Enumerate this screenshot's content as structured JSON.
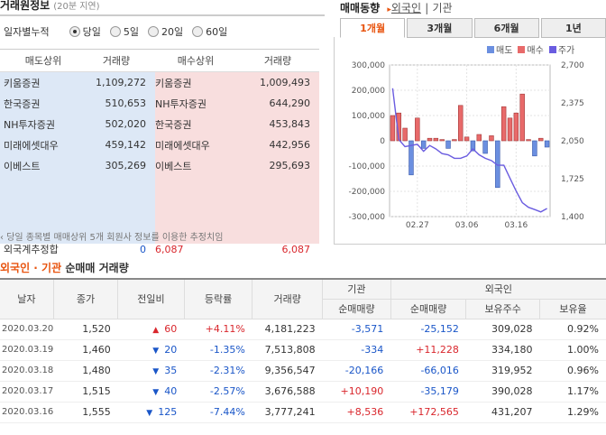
{
  "left": {
    "title": "거래원정보",
    "subtitle": "(20분 지연)",
    "accum_label": "일자별누적",
    "periods": [
      {
        "label": "당일",
        "selected": true
      },
      {
        "label": "5일",
        "selected": false
      },
      {
        "label": "20일",
        "selected": false
      },
      {
        "label": "60일",
        "selected": false
      }
    ],
    "headers": [
      "매도상위",
      "거래량",
      "매수상위",
      "거래량"
    ],
    "rows": [
      {
        "sell_name": "키움증권",
        "sell_vol": "1,109,272",
        "buy_name": "키움증권",
        "buy_vol": "1,009,493"
      },
      {
        "sell_name": "한국증권",
        "sell_vol": "510,653",
        "buy_name": "NH투자증권",
        "buy_vol": "644,290"
      },
      {
        "sell_name": "NH투자증권",
        "sell_vol": "502,020",
        "buy_name": "한국증권",
        "buy_vol": "453,843"
      },
      {
        "sell_name": "미래에셋대우",
        "sell_vol": "459,142",
        "buy_name": "미래에셋대우",
        "buy_vol": "442,956"
      },
      {
        "sell_name": "이베스트",
        "sell_vol": "305,269",
        "buy_name": "이베스트",
        "buy_vol": "295,693"
      }
    ],
    "foreign": {
      "label": "외국계추정합",
      "sell": "0",
      "buy_name": "6,087",
      "buy": "6,087"
    },
    "note": "당일 종목별 매매상위 5개 회원사 정보를 이용한 추정치임"
  },
  "chart": {
    "title": "매매동향",
    "link1": "외국인",
    "link2": "기관",
    "tabs": [
      {
        "label": "1개월",
        "active": true
      },
      {
        "label": "3개월",
        "active": false
      },
      {
        "label": "6개월",
        "active": false
      },
      {
        "label": "1년",
        "active": false
      }
    ],
    "legend": [
      {
        "label": "매도",
        "color": "#6b8fe0"
      },
      {
        "label": "매수",
        "color": "#e86a6a"
      },
      {
        "label": "주가",
        "color": "#6a5ce0"
      }
    ]
  },
  "chart_data": {
    "type": "bar",
    "y_left_ticks": [
      "300,000",
      "200,000",
      "100,000",
      "0",
      "-100,000",
      "-200,000",
      "-300,000"
    ],
    "y_right_ticks": [
      "2,700",
      "2,375",
      "2,050",
      "1,725",
      "1,400"
    ],
    "x_ticks": [
      "02.27",
      "03.06",
      "03.16"
    ],
    "ylim": [
      -300000,
      300000
    ],
    "y2lim": [
      1400,
      2700
    ],
    "bars": [
      100000,
      110000,
      50000,
      -135000,
      90000,
      -30000,
      10000,
      10000,
      5000,
      -30000,
      5000,
      140000,
      15000,
      -40000,
      25000,
      -50000,
      20000,
      -185000,
      135000,
      90000,
      110000,
      185000,
      5000,
      -60000,
      10000,
      -25000
    ],
    "price": [
      2500,
      2060,
      2000,
      2010,
      2020,
      1960,
      2010,
      1980,
      1940,
      1930,
      1900,
      1900,
      1920,
      1980,
      1930,
      1900,
      1880,
      1840,
      1840,
      1730,
      1620,
      1520,
      1480,
      1460,
      1440,
      1470
    ]
  },
  "bottom": {
    "title_a": "외국인",
    "title_sep": " · ",
    "title_b": "기관",
    "title_c": " 순매매 거래량",
    "group_inst": "기관",
    "group_foreign": "외국인",
    "headers": [
      "날자",
      "종가",
      "전일비",
      "등락률",
      "거래량",
      "순매매량",
      "순매매량",
      "보유주수",
      "보유율"
    ],
    "rows": [
      {
        "date": "2020.03.20",
        "close": "1,520",
        "dir": "up",
        "diff": "60",
        "rate": "+4.11%",
        "vol": "4,181,223",
        "inst": "-3,571",
        "frgn": "-25,152",
        "hold": "309,028",
        "ratio": "0.92%"
      },
      {
        "date": "2020.03.19",
        "close": "1,460",
        "dir": "down",
        "diff": "20",
        "rate": "-1.35%",
        "vol": "7,513,808",
        "inst": "-334",
        "frgn": "+11,228",
        "hold": "334,180",
        "ratio": "1.00%"
      },
      {
        "date": "2020.03.18",
        "close": "1,480",
        "dir": "down",
        "diff": "35",
        "rate": "-2.31%",
        "vol": "9,356,547",
        "inst": "-20,166",
        "frgn": "-66,016",
        "hold": "319,952",
        "ratio": "0.96%"
      },
      {
        "date": "2020.03.17",
        "close": "1,515",
        "dir": "down",
        "diff": "40",
        "rate": "-2.57%",
        "vol": "3,676,588",
        "inst": "+10,190",
        "frgn": "-35,179",
        "hold": "390,028",
        "ratio": "1.17%"
      },
      {
        "date": "2020.03.16",
        "close": "1,555",
        "dir": "down",
        "diff": "125",
        "rate": "-7.44%",
        "vol": "3,777,241",
        "inst": "+8,536",
        "frgn": "+172,565",
        "hold": "431,207",
        "ratio": "1.29%"
      }
    ]
  }
}
